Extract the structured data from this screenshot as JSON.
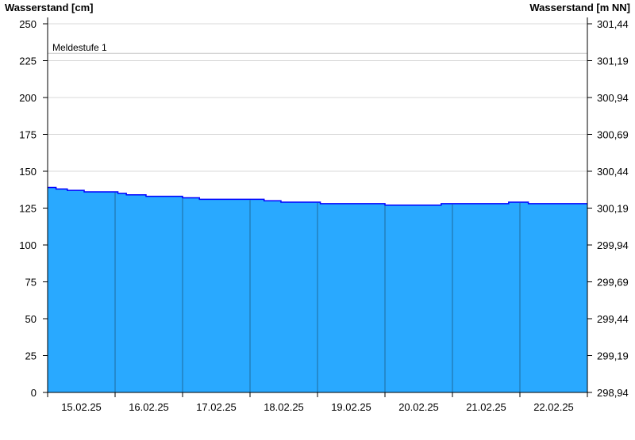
{
  "chart_data": {
    "type": "area",
    "ylabel_left": "Wasserstand [cm]",
    "ylabel_right": "Wasserstand [m NN]",
    "ylim": [
      0,
      250
    ],
    "yticks_left": [
      "0",
      "25",
      "50",
      "75",
      "100",
      "125",
      "150",
      "175",
      "200",
      "225",
      "250"
    ],
    "yticks_right": [
      "298,94",
      "299,19",
      "299,44",
      "299,69",
      "299,94",
      "300,19",
      "300,44",
      "300,69",
      "300,94",
      "301,19",
      "301,44"
    ],
    "xlim": [
      "15.02.25 00:00",
      "23.02.25 00:00"
    ],
    "xtick_labels": [
      "15.02.25",
      "16.02.25",
      "17.02.25",
      "18.02.25",
      "19.02.25",
      "20.02.25",
      "21.02.25",
      "22.02.25"
    ],
    "grid": true,
    "threshold": {
      "label": "Meldestufe 1",
      "value": 230
    },
    "colors": {
      "fill": "#29a9ff",
      "line": "#0000ff",
      "grid": "#d8d8d8",
      "threshold": "#c8c8c8",
      "day_lines": "#1f6a9e"
    },
    "series": [
      {
        "points": [
          [
            "15.02.25 00:00",
            139
          ],
          [
            "15.02.25 03:00",
            138
          ],
          [
            "15.02.25 07:00",
            137
          ],
          [
            "15.02.25 13:00",
            136
          ],
          [
            "16.02.25 01:00",
            135
          ],
          [
            "16.02.25 04:00",
            134
          ],
          [
            "16.02.25 11:00",
            133
          ],
          [
            "17.02.25 00:00",
            132
          ],
          [
            "17.02.25 06:00",
            131
          ],
          [
            "18.02.25 05:00",
            130
          ],
          [
            "18.02.25 11:00",
            129
          ],
          [
            "19.02.25 01:00",
            128
          ],
          [
            "20.02.25 00:00",
            127
          ],
          [
            "20.02.25 20:00",
            128
          ],
          [
            "21.02.25 20:00",
            129
          ],
          [
            "22.02.25 03:00",
            128
          ],
          [
            "23.02.25 00:00",
            128
          ]
        ]
      }
    ]
  }
}
